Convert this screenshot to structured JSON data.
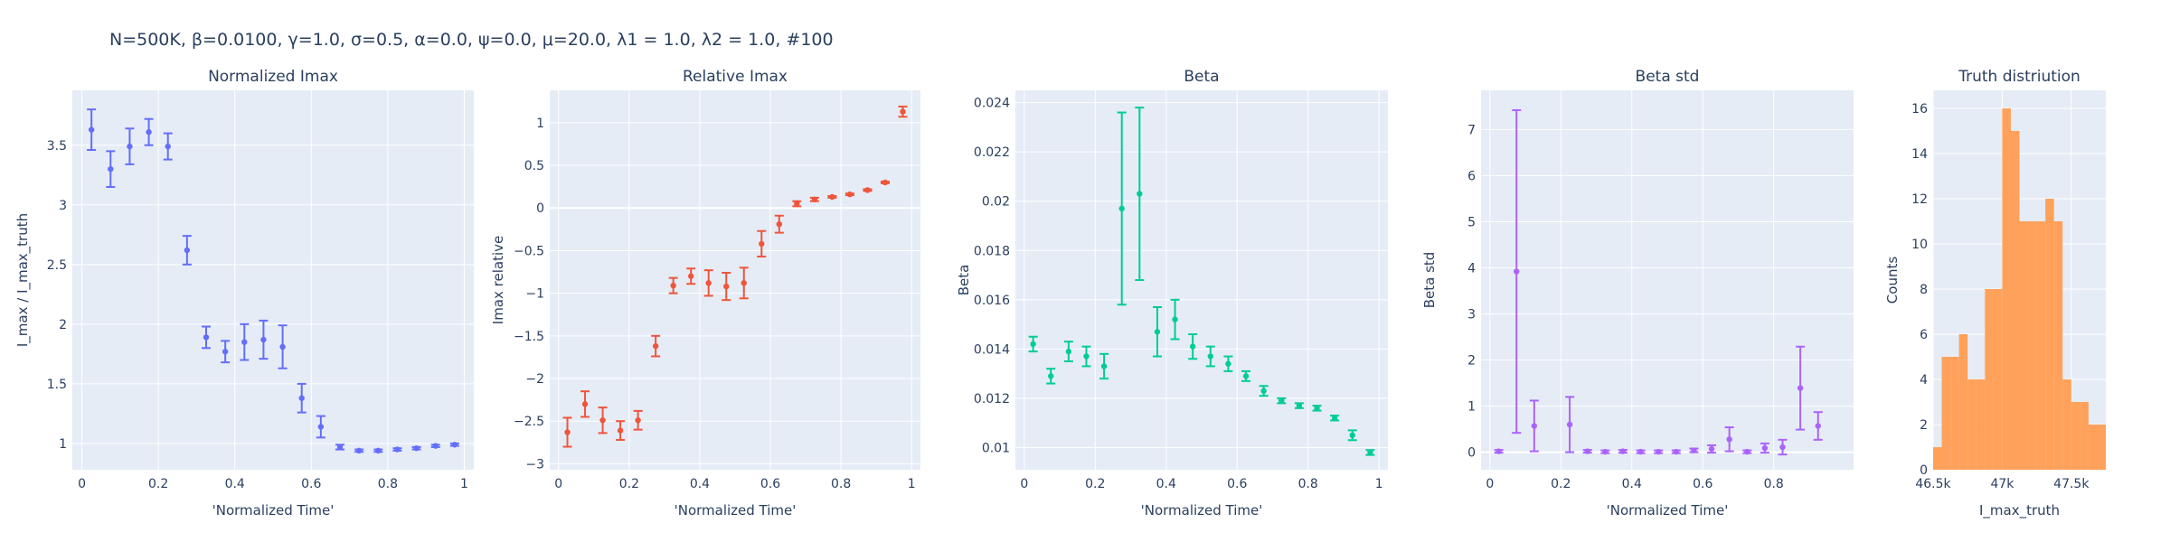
{
  "figure_title": "N=500K, β=0.0100, γ=1.0, σ=0.5,  α=0.0, ψ=0.0, μ=20.0, λ1 = 1.0, λ2 = 1.0, #100",
  "chart_data": [
    {
      "type": "scatter",
      "title": "Normalized Imax",
      "xlabel": "'Normalized Time'",
      "ylabel": "I_max / I_max_truth",
      "color": "#636efa",
      "xlim": [
        -0.025,
        1.025
      ],
      "ylim": [
        0.78,
        3.96
      ],
      "xticks": [
        0,
        0.2,
        0.4,
        0.6,
        0.8,
        1
      ],
      "xtick_labels": [
        "0",
        "0.2",
        "0.4",
        "0.6",
        "0.8",
        "1"
      ],
      "yticks": [
        1,
        1.5,
        2,
        2.5,
        3,
        3.5
      ],
      "ytick_labels": [
        "1",
        "1.5",
        "2",
        "2.5",
        "3",
        "3.5"
      ],
      "grid": true,
      "points": [
        {
          "x": 0.025,
          "y": 3.63,
          "err": 0.17
        },
        {
          "x": 0.075,
          "y": 3.3,
          "err": 0.15
        },
        {
          "x": 0.125,
          "y": 3.49,
          "err": 0.15
        },
        {
          "x": 0.175,
          "y": 3.61,
          "err": 0.11
        },
        {
          "x": 0.225,
          "y": 3.49,
          "err": 0.11
        },
        {
          "x": 0.275,
          "y": 2.62,
          "err": 0.12
        },
        {
          "x": 0.325,
          "y": 1.89,
          "err": 0.09
        },
        {
          "x": 0.375,
          "y": 1.77,
          "err": 0.09
        },
        {
          "x": 0.425,
          "y": 1.85,
          "err": 0.15
        },
        {
          "x": 0.475,
          "y": 1.87,
          "err": 0.16
        },
        {
          "x": 0.525,
          "y": 1.81,
          "err": 0.18
        },
        {
          "x": 0.575,
          "y": 1.38,
          "err": 0.12
        },
        {
          "x": 0.625,
          "y": 1.14,
          "err": 0.09
        },
        {
          "x": 0.675,
          "y": 0.97,
          "err": 0.02
        },
        {
          "x": 0.725,
          "y": 0.94,
          "err": 0.01
        },
        {
          "x": 0.775,
          "y": 0.94,
          "err": 0.01
        },
        {
          "x": 0.825,
          "y": 0.95,
          "err": 0.01
        },
        {
          "x": 0.875,
          "y": 0.96,
          "err": 0.01
        },
        {
          "x": 0.925,
          "y": 0.98,
          "err": 0.01
        },
        {
          "x": 0.975,
          "y": 0.99,
          "err": 0.01
        }
      ]
    },
    {
      "type": "scatter",
      "title": "Relative Imax",
      "xlabel": "'Normalized Time'",
      "ylabel": "Imax relative",
      "color": "#ef553b",
      "xlim": [
        -0.025,
        1.025
      ],
      "ylim": [
        -3.07,
        1.38
      ],
      "xticks": [
        0,
        0.2,
        0.4,
        0.6,
        0.8,
        1
      ],
      "xtick_labels": [
        "0",
        "0.2",
        "0.4",
        "0.6",
        "0.8",
        "1"
      ],
      "yticks": [
        -3,
        -2.5,
        -2,
        -1.5,
        -1,
        -0.5,
        0,
        0.5,
        1
      ],
      "ytick_labels": [
        "−3",
        "−2.5",
        "−2",
        "−1.5",
        "−1",
        "−0.5",
        "0",
        "0.5",
        "1"
      ],
      "grid": true,
      "points": [
        {
          "x": 0.025,
          "y": -2.63,
          "err": 0.17
        },
        {
          "x": 0.075,
          "y": -2.3,
          "err": 0.15
        },
        {
          "x": 0.125,
          "y": -2.49,
          "err": 0.15
        },
        {
          "x": 0.175,
          "y": -2.61,
          "err": 0.11
        },
        {
          "x": 0.225,
          "y": -2.49,
          "err": 0.11
        },
        {
          "x": 0.275,
          "y": -1.62,
          "err": 0.12
        },
        {
          "x": 0.325,
          "y": -0.91,
          "err": 0.09
        },
        {
          "x": 0.375,
          "y": -0.8,
          "err": 0.09
        },
        {
          "x": 0.425,
          "y": -0.88,
          "err": 0.15
        },
        {
          "x": 0.475,
          "y": -0.92,
          "err": 0.16
        },
        {
          "x": 0.525,
          "y": -0.88,
          "err": 0.18
        },
        {
          "x": 0.575,
          "y": -0.42,
          "err": 0.15
        },
        {
          "x": 0.625,
          "y": -0.19,
          "err": 0.1
        },
        {
          "x": 0.675,
          "y": 0.05,
          "err": 0.03
        },
        {
          "x": 0.725,
          "y": 0.1,
          "err": 0.02
        },
        {
          "x": 0.775,
          "y": 0.13,
          "err": 0.01
        },
        {
          "x": 0.825,
          "y": 0.16,
          "err": 0.01
        },
        {
          "x": 0.875,
          "y": 0.21,
          "err": 0.01
        },
        {
          "x": 0.925,
          "y": 0.3,
          "err": 0.01
        },
        {
          "x": 0.975,
          "y": 1.13,
          "err": 0.06
        }
      ]
    },
    {
      "type": "scatter",
      "title": "Beta",
      "xlabel": "'Normalized Time'",
      "ylabel": "Beta",
      "color": "#00cc96",
      "xlim": [
        -0.025,
        1.025
      ],
      "ylim": [
        0.0091,
        0.0245
      ],
      "xticks": [
        0,
        0.2,
        0.4,
        0.6,
        0.8,
        1
      ],
      "xtick_labels": [
        "0",
        "0.2",
        "0.4",
        "0.6",
        "0.8",
        "1"
      ],
      "yticks": [
        0.01,
        0.012,
        0.014,
        0.016,
        0.018,
        0.02,
        0.022,
        0.024
      ],
      "ytick_labels": [
        "0.01",
        "0.012",
        "0.014",
        "0.016",
        "0.018",
        "0.02",
        "0.022",
        "0.024"
      ],
      "grid": true,
      "points": [
        {
          "x": 0.025,
          "y": 0.0142,
          "err": 0.0003
        },
        {
          "x": 0.075,
          "y": 0.0129,
          "err": 0.0003
        },
        {
          "x": 0.125,
          "y": 0.0139,
          "err": 0.0004
        },
        {
          "x": 0.175,
          "y": 0.0137,
          "err": 0.0004
        },
        {
          "x": 0.225,
          "y": 0.0133,
          "err": 0.0005
        },
        {
          "x": 0.275,
          "y": 0.0197,
          "err": 0.0039
        },
        {
          "x": 0.325,
          "y": 0.0203,
          "err": 0.0035
        },
        {
          "x": 0.375,
          "y": 0.0147,
          "err": 0.001
        },
        {
          "x": 0.425,
          "y": 0.0152,
          "err": 0.0008
        },
        {
          "x": 0.475,
          "y": 0.0141,
          "err": 0.0005
        },
        {
          "x": 0.525,
          "y": 0.0137,
          "err": 0.0004
        },
        {
          "x": 0.575,
          "y": 0.0134,
          "err": 0.0003
        },
        {
          "x": 0.625,
          "y": 0.0129,
          "err": 0.0002
        },
        {
          "x": 0.675,
          "y": 0.0123,
          "err": 0.0002
        },
        {
          "x": 0.725,
          "y": 0.0119,
          "err": 0.0001
        },
        {
          "x": 0.775,
          "y": 0.0117,
          "err": 0.0001
        },
        {
          "x": 0.825,
          "y": 0.0116,
          "err": 0.0001
        },
        {
          "x": 0.875,
          "y": 0.0112,
          "err": 0.0001
        },
        {
          "x": 0.925,
          "y": 0.0105,
          "err": 0.0002
        },
        {
          "x": 0.975,
          "y": 0.0098,
          "err": 0.0001
        }
      ]
    },
    {
      "type": "scatter",
      "title": "Beta std",
      "xlabel": "'Normalized Time'",
      "ylabel": "Beta std",
      "color": "#ab63fa",
      "xlim": [
        -0.025,
        1.025
      ],
      "ylim": [
        -0.38,
        7.85
      ],
      "xticks": [
        0,
        0.2,
        0.4,
        0.6,
        0.8
      ],
      "xtick_labels": [
        "0",
        "0.2",
        "0.4",
        "0.6",
        "0.8"
      ],
      "yticks": [
        0,
        1,
        2,
        3,
        4,
        5,
        6,
        7
      ],
      "ytick_labels": [
        "0",
        "1",
        "2",
        "3",
        "4",
        "5",
        "6",
        "7"
      ],
      "grid": true,
      "points": [
        {
          "x": 0.025,
          "y": 0.02,
          "err": 0.03
        },
        {
          "x": 0.075,
          "y": 3.92,
          "err": 3.5
        },
        {
          "x": 0.125,
          "y": 0.57,
          "err": 0.55
        },
        {
          "x": 0.225,
          "y": 0.6,
          "err": 0.6
        },
        {
          "x": 0.275,
          "y": 0.02,
          "err": 0.03
        },
        {
          "x": 0.325,
          "y": 0.01,
          "err": 0.03
        },
        {
          "x": 0.375,
          "y": 0.02,
          "err": 0.03
        },
        {
          "x": 0.425,
          "y": 0.01,
          "err": 0.03
        },
        {
          "x": 0.475,
          "y": 0.01,
          "err": 0.03
        },
        {
          "x": 0.525,
          "y": 0.01,
          "err": 0.03
        },
        {
          "x": 0.575,
          "y": 0.04,
          "err": 0.04
        },
        {
          "x": 0.625,
          "y": 0.07,
          "err": 0.08
        },
        {
          "x": 0.675,
          "y": 0.28,
          "err": 0.26
        },
        {
          "x": 0.725,
          "y": 0.01,
          "err": 0.03
        },
        {
          "x": 0.775,
          "y": 0.09,
          "err": 0.1
        },
        {
          "x": 0.825,
          "y": 0.11,
          "err": 0.16
        },
        {
          "x": 0.875,
          "y": 1.39,
          "err": 0.9
        },
        {
          "x": 0.925,
          "y": 0.57,
          "err": 0.3
        }
      ]
    },
    {
      "type": "histogram",
      "title": "Truth distriution",
      "xlabel": "I_max_truth",
      "ylabel": "Counts",
      "color": "#ffa15a",
      "xlim": [
        46500,
        47750
      ],
      "ylim": [
        0,
        16.8
      ],
      "xticks": [
        46500,
        47000,
        47500
      ],
      "xtick_labels": [
        "46.5k",
        "47k",
        "47.5k"
      ],
      "yticks": [
        0,
        2,
        4,
        6,
        8,
        10,
        12,
        14,
        16
      ],
      "ytick_labels": [
        "0",
        "2",
        "4",
        "6",
        "8",
        "10",
        "12",
        "14",
        "16"
      ],
      "grid": true,
      "bin_width": 62.5,
      "bin_starts": [
        46500,
        46562.5,
        46625,
        46687.5,
        46750,
        46812.5,
        46875,
        46937.5,
        47000,
        47062.5,
        47125,
        47187.5,
        47250,
        47312.5,
        47375,
        47437.5,
        47500,
        47562.5,
        47625,
        47687.5
      ],
      "counts": [
        1,
        5,
        5,
        6,
        4,
        4,
        8,
        8,
        16,
        15,
        11,
        11,
        11,
        12,
        11,
        4,
        3,
        3,
        2,
        2
      ]
    }
  ]
}
